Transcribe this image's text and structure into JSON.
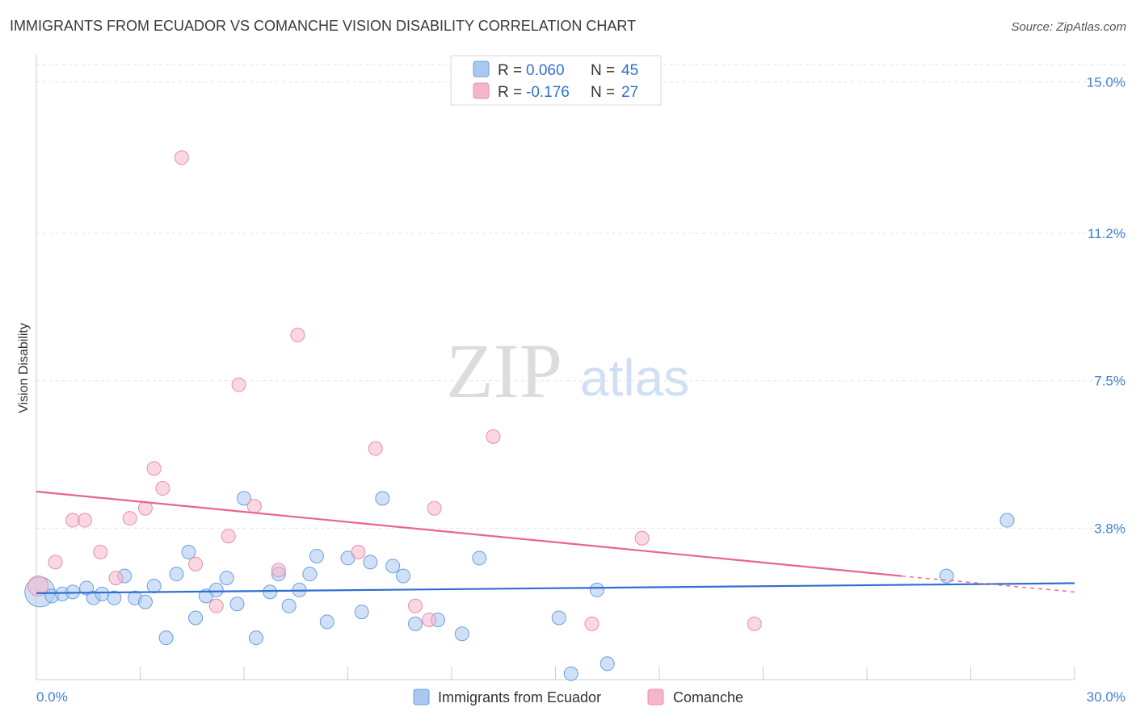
{
  "header": {
    "title": "IMMIGRANTS FROM ECUADOR VS COMANCHE VISION DISABILITY CORRELATION CHART",
    "source": "Source: ZipAtlas.com"
  },
  "watermark": {
    "zip": "ZIP",
    "atlas": "atlas"
  },
  "legend": {
    "rows": [
      {
        "r_label": "R =",
        "r_value": "0.060",
        "n_label": "N =",
        "n_value": "45",
        "color": "#a9c8f0"
      },
      {
        "r_label": "R =",
        "r_value": "-0.176",
        "n_label": "N =",
        "n_value": "27",
        "color": "#f6b6c8"
      }
    ]
  },
  "bottom_legend": {
    "items": [
      {
        "label": "Immigrants from Ecuador",
        "color": "#a9c8f0"
      },
      {
        "label": "Comanche",
        "color": "#f6b6c8"
      }
    ]
  },
  "chart_data": {
    "type": "scatter",
    "title": "IMMIGRANTS FROM ECUADOR VS COMANCHE VISION DISABILITY CORRELATION CHART",
    "xlabel": "",
    "ylabel": "Vision Disability",
    "xlim": [
      0,
      30
    ],
    "ylim": [
      0,
      15.8
    ],
    "x_tick_labels": [
      "0.0%",
      "30.0%"
    ],
    "y_ticks": [
      3.8,
      7.5,
      11.2,
      15.0
    ],
    "y_tick_labels": [
      "3.8%",
      "7.5%",
      "11.2%",
      "15.0%"
    ],
    "grid": true,
    "series": [
      {
        "name": "Immigrants from Ecuador",
        "color": "#a9c8f0",
        "stroke": "#6a9fe0",
        "trend_color": "#2f6fd1",
        "trend": {
          "x0": 0,
          "y0": 2.17,
          "x1": 30,
          "y1": 2.42
        },
        "points": [
          [
            0.1,
            2.2,
            20
          ],
          [
            0.45,
            2.1,
            10
          ],
          [
            0.75,
            2.15,
            10
          ],
          [
            1.05,
            2.2,
            10
          ],
          [
            1.45,
            2.3,
            10
          ],
          [
            1.65,
            2.05,
            10
          ],
          [
            1.9,
            2.15,
            10
          ],
          [
            2.55,
            2.6,
            10
          ],
          [
            2.25,
            2.05,
            10
          ],
          [
            2.85,
            2.05,
            10
          ],
          [
            3.15,
            1.95,
            10
          ],
          [
            3.4,
            2.35,
            10
          ],
          [
            3.75,
            1.05,
            10
          ],
          [
            4.05,
            2.65,
            10
          ],
          [
            4.4,
            3.2,
            10
          ],
          [
            4.6,
            1.55,
            10
          ],
          [
            4.9,
            2.1,
            10
          ],
          [
            5.2,
            2.25,
            10
          ],
          [
            5.5,
            2.55,
            10
          ],
          [
            5.8,
            1.9,
            10
          ],
          [
            6.0,
            4.55,
            10
          ],
          [
            6.35,
            1.05,
            10
          ],
          [
            6.75,
            2.2,
            10
          ],
          [
            7.0,
            2.65,
            10
          ],
          [
            7.3,
            1.85,
            10
          ],
          [
            7.6,
            2.25,
            10
          ],
          [
            7.9,
            2.65,
            10
          ],
          [
            8.1,
            3.1,
            10
          ],
          [
            8.4,
            1.45,
            10
          ],
          [
            9.0,
            3.05,
            10
          ],
          [
            9.4,
            1.7,
            10
          ],
          [
            9.65,
            2.95,
            10
          ],
          [
            10.0,
            4.55,
            10
          ],
          [
            10.3,
            2.85,
            10
          ],
          [
            10.6,
            2.6,
            10
          ],
          [
            10.95,
            1.4,
            10
          ],
          [
            11.6,
            1.5,
            10
          ],
          [
            12.3,
            1.15,
            10
          ],
          [
            12.8,
            3.05,
            10
          ],
          [
            15.1,
            1.55,
            10
          ],
          [
            15.45,
            0.15,
            10
          ],
          [
            16.2,
            2.25,
            10
          ],
          [
            16.5,
            0.4,
            10
          ],
          [
            26.3,
            2.6,
            10
          ],
          [
            28.05,
            4.0,
            10
          ]
        ]
      },
      {
        "name": "Comanche",
        "color": "#f6b6c8",
        "stroke": "#e88fab",
        "trend_color": "#e8648f",
        "trend": {
          "x0": 0,
          "y0": 4.72,
          "x1": 25.0,
          "y1": 2.6
        },
        "trend_dashed": {
          "x0": 25.0,
          "y0": 2.6,
          "x1": 30,
          "y1": 2.2
        },
        "points": [
          [
            0.05,
            2.35,
            14
          ],
          [
            0.55,
            2.95,
            10
          ],
          [
            1.05,
            4.0,
            10
          ],
          [
            1.4,
            4.0,
            10
          ],
          [
            1.85,
            3.2,
            10
          ],
          [
            2.3,
            2.55,
            10
          ],
          [
            2.7,
            4.05,
            10
          ],
          [
            3.15,
            4.3,
            10
          ],
          [
            3.4,
            5.3,
            10
          ],
          [
            3.65,
            4.8,
            10
          ],
          [
            4.2,
            13.1,
            10
          ],
          [
            4.6,
            2.9,
            10
          ],
          [
            5.2,
            1.85,
            10
          ],
          [
            5.55,
            3.6,
            10
          ],
          [
            5.85,
            7.4,
            10
          ],
          [
            6.3,
            4.35,
            10
          ],
          [
            7.0,
            2.75,
            10
          ],
          [
            7.55,
            8.65,
            10
          ],
          [
            9.3,
            3.2,
            10
          ],
          [
            9.8,
            5.8,
            10
          ],
          [
            10.95,
            1.85,
            10
          ],
          [
            11.35,
            1.5,
            10
          ],
          [
            11.5,
            4.3,
            10
          ],
          [
            13.2,
            6.1,
            10
          ],
          [
            16.05,
            1.4,
            10
          ],
          [
            17.5,
            3.55,
            10
          ],
          [
            20.75,
            1.4,
            10
          ]
        ]
      }
    ]
  }
}
